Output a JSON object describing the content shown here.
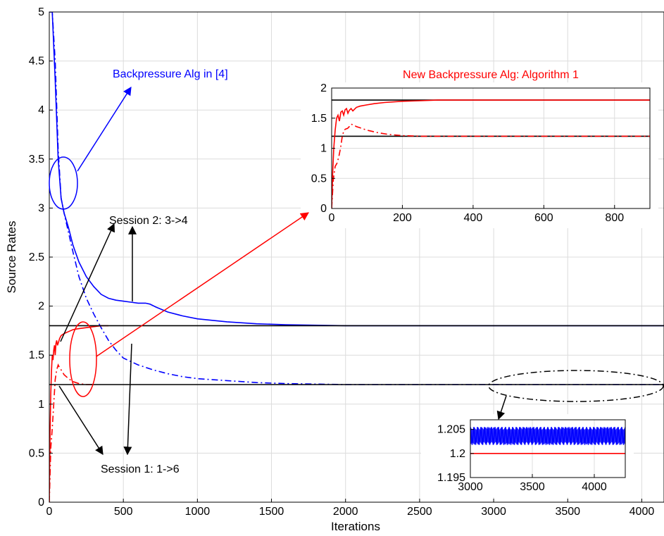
{
  "chart_data": [
    {
      "type": "line",
      "xlabel": "Iterations",
      "ylabel": "Source Rates",
      "xlim": [
        0,
        4150
      ],
      "ylim": [
        0,
        5
      ],
      "xticks": [
        0,
        500,
        1000,
        1500,
        2000,
        2500,
        3000,
        3500,
        4000
      ],
      "yticks": [
        0,
        0.5,
        1,
        1.5,
        2,
        2.5,
        3,
        3.5,
        4,
        4.5,
        5
      ],
      "xtick_labels": [
        "0",
        "500",
        "1000",
        "1500",
        "2000",
        "2500",
        "3000",
        "3500",
        "4000"
      ],
      "ytick_labels": [
        "0",
        "0.5",
        "1",
        "1.5",
        "2",
        "2.5",
        "3",
        "3.5",
        "4",
        "4.5",
        "5"
      ],
      "grid": true,
      "series": [
        {
          "color": "#0000ff",
          "style": "solid",
          "x": [
            0,
            20,
            40,
            60,
            80,
            100,
            130,
            160,
            200,
            250,
            300,
            350,
            400,
            450,
            500,
            550,
            600,
            650,
            680,
            720,
            800,
            900,
            1000,
            1200,
            1400,
            1600,
            2000,
            2500,
            3000,
            4150
          ],
          "y": [
            5.0,
            5.0,
            4.3,
            3.5,
            3.1,
            2.95,
            2.8,
            2.62,
            2.45,
            2.3,
            2.2,
            2.12,
            2.08,
            2.06,
            2.05,
            2.04,
            2.03,
            2.03,
            2.02,
            1.99,
            1.94,
            1.9,
            1.87,
            1.84,
            1.82,
            1.81,
            1.8,
            1.8,
            1.8,
            1.8
          ]
        },
        {
          "color": "#0000ff",
          "style": "dashdot",
          "x": [
            0,
            20,
            40,
            60,
            80,
            100,
            130,
            160,
            200,
            250,
            300,
            350,
            400,
            450,
            500,
            600,
            700,
            800,
            900,
            1000,
            1200,
            1400,
            1600,
            1800,
            2000,
            2500,
            3000,
            4150
          ],
          "y": [
            5.0,
            5.0,
            4.5,
            3.6,
            3.1,
            2.95,
            2.75,
            2.55,
            2.3,
            2.08,
            1.92,
            1.78,
            1.65,
            1.55,
            1.47,
            1.4,
            1.35,
            1.31,
            1.28,
            1.26,
            1.24,
            1.22,
            1.21,
            1.205,
            1.2,
            1.2,
            1.2,
            1.2
          ]
        },
        {
          "color": "#ff0000",
          "style": "solid",
          "x": [
            0,
            5,
            10,
            15,
            20,
            25,
            30,
            35,
            40,
            45,
            50,
            55,
            60,
            70,
            80,
            100,
            130,
            160,
            200,
            250,
            300,
            350,
            400
          ],
          "y": [
            0,
            0.7,
            1.1,
            1.35,
            1.5,
            1.45,
            1.55,
            1.6,
            1.5,
            1.62,
            1.65,
            1.6,
            1.62,
            1.67,
            1.7,
            1.72,
            1.74,
            1.76,
            1.77,
            1.78,
            1.79,
            1.8,
            1.8
          ]
        },
        {
          "color": "#ff0000",
          "style": "dashdot",
          "x": [
            0,
            10,
            20,
            30,
            40,
            50,
            60,
            70,
            80,
            100,
            130,
            160,
            200,
            250,
            300
          ],
          "y": [
            0,
            0.55,
            0.75,
            1.0,
            1.25,
            1.35,
            1.4,
            1.37,
            1.35,
            1.3,
            1.26,
            1.23,
            1.21,
            1.2,
            1.2
          ]
        },
        {
          "color": "#000000",
          "style": "solid",
          "x": [
            0,
            4150
          ],
          "y": [
            1.8,
            1.8
          ]
        },
        {
          "color": "#000000",
          "style": "solid",
          "x": [
            0,
            4150
          ],
          "y": [
            1.2,
            1.2
          ]
        }
      ],
      "annotations": [
        {
          "text": "Backpressure Alg in [4]",
          "color": "#0000ff"
        },
        {
          "text": "Session 2: 3->4",
          "color": "#000000"
        },
        {
          "text": "Session 1: 1->6",
          "color": "#000000"
        }
      ]
    },
    {
      "type": "line",
      "title": "New Backpressure Alg: Algorithm 1",
      "title_color": "#ff0000",
      "xlim": [
        0,
        900
      ],
      "ylim": [
        0,
        2
      ],
      "xticks": [
        0,
        200,
        400,
        600,
        800
      ],
      "yticks": [
        0,
        0.5,
        1,
        1.5,
        2
      ],
      "xtick_labels": [
        "0",
        "200",
        "400",
        "600",
        "800"
      ],
      "ytick_labels": [
        "0",
        "0.5",
        "1",
        "1.5",
        "2"
      ],
      "grid": true,
      "series": [
        {
          "color": "#000000",
          "style": "solid",
          "x": [
            0,
            900
          ],
          "y": [
            1.8,
            1.8
          ]
        },
        {
          "color": "#000000",
          "style": "solid",
          "x": [
            0,
            900
          ],
          "y": [
            1.2,
            1.2
          ]
        },
        {
          "color": "#ff0000",
          "style": "solid",
          "x": [
            0,
            3,
            6,
            10,
            14,
            18,
            22,
            26,
            30,
            34,
            38,
            42,
            46,
            50,
            55,
            60,
            65,
            70,
            80,
            100,
            120,
            150,
            200,
            250,
            300,
            400,
            900
          ],
          "y": [
            0,
            0.6,
            1.0,
            1.3,
            1.5,
            1.55,
            1.45,
            1.6,
            1.62,
            1.55,
            1.64,
            1.66,
            1.58,
            1.63,
            1.66,
            1.62,
            1.65,
            1.68,
            1.7,
            1.72,
            1.74,
            1.76,
            1.78,
            1.79,
            1.8,
            1.8,
            1.8
          ]
        },
        {
          "color": "#ff0000",
          "style": "dashdot",
          "x": [
            0,
            5,
            10,
            15,
            20,
            25,
            30,
            35,
            40,
            45,
            50,
            55,
            60,
            70,
            80,
            100,
            130,
            160,
            200,
            250,
            300,
            400,
            900
          ],
          "y": [
            0,
            0.5,
            0.7,
            0.75,
            0.85,
            1.0,
            1.2,
            1.3,
            1.32,
            1.33,
            1.36,
            1.4,
            1.39,
            1.36,
            1.34,
            1.3,
            1.26,
            1.23,
            1.21,
            1.2,
            1.2,
            1.2,
            1.2
          ]
        }
      ]
    },
    {
      "type": "line",
      "xlim": [
        3000,
        4250
      ],
      "ylim": [
        1.195,
        1.207
      ],
      "xticks": [
        3000,
        3500,
        4000
      ],
      "yticks": [
        1.195,
        1.2,
        1.205
      ],
      "xtick_labels": [
        "3000",
        "3500",
        "4000"
      ],
      "ytick_labels": [
        "1.195",
        "1.2",
        "1.205"
      ],
      "grid": true,
      "series": [
        {
          "color": "#0000ff",
          "style": "solid",
          "pattern": "sawtooth",
          "min": 1.2018,
          "max": 1.2055
        },
        {
          "color": "#ff0000",
          "style": "solid",
          "x": [
            3000,
            4250
          ],
          "y": [
            1.2,
            1.2
          ]
        }
      ]
    }
  ]
}
